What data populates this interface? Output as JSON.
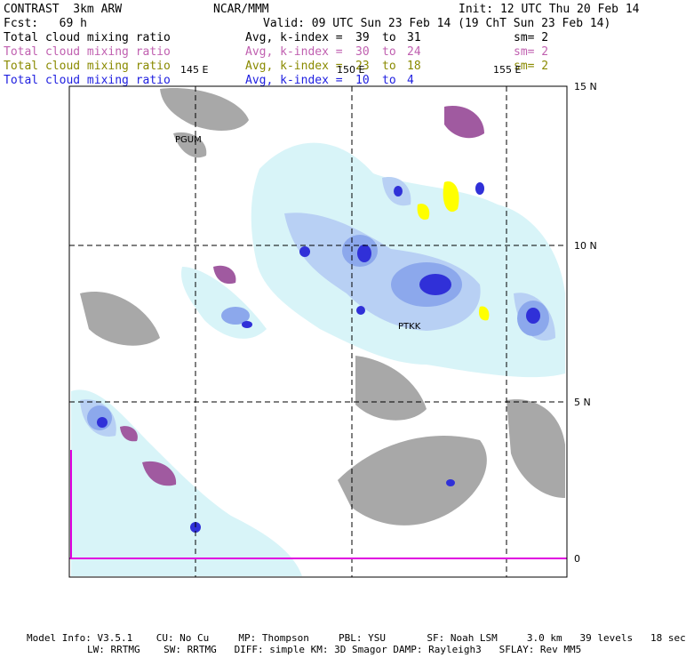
{
  "header": {
    "model": "CONTRAST  3km ARW",
    "org": "NCAR/MMM",
    "init": "Init: 12 UTC Thu 20 Feb 14",
    "fcst": "Fcst:   69 h",
    "valid": "Valid: 09 UTC Sun 23 Feb 14 (19 ChT Sun 23 Feb 14)"
  },
  "fields": [
    {
      "name": "Total cloud mixing ratio",
      "stat": "Avg, k-index =",
      "from": "39",
      "to_word": "to",
      "to": "31",
      "sm": "sm= 2",
      "color": "#000000"
    },
    {
      "name": "Total cloud mixing ratio",
      "stat": "Avg, k-index =",
      "from": "30",
      "to_word": "to",
      "to": "24",
      "sm": "sm= 2",
      "color": "#c060b0"
    },
    {
      "name": "Total cloud mixing ratio",
      "stat": "Avg, k-index =",
      "from": "23",
      "to_word": "to",
      "to": "18",
      "sm": "sm= 2",
      "color": "#8a8a00"
    },
    {
      "name": "Total cloud mixing ratio",
      "stat": "Avg, k-index =",
      "from": "10",
      "to_word": "to",
      "to": "4",
      "sm": "",
      "color": "#2020e0"
    }
  ],
  "map": {
    "lon_labels": [
      "145 E",
      "150 E",
      "155 E"
    ],
    "lat_labels": [
      "15 N",
      "10 N",
      "5 N",
      "0"
    ],
    "stations": [
      "PGUM",
      "PTKK"
    ],
    "colors": {
      "gray": "#a8a8a8",
      "purple": "#a05aa0",
      "yellow": "#ffff00",
      "cyan_light": "#d8f4f8",
      "blue_light": "#b8d0f4",
      "blue_mid": "#8ca8ec",
      "blue_dark": "#3030d8",
      "magenta": "#e000e0"
    }
  },
  "footer": {
    "line1": "Model Info: V3.5.1    CU: No Cu     MP: Thompson     PBL: YSU       SF: Noah LSM     3.0 km   39 levels   18 sec",
    "line2": "LW: RRTMG    SW: RRTMG   DIFF: simple KM: 3D Smagor DAMP: Rayleigh3   SFLAY: Rev MM5"
  }
}
